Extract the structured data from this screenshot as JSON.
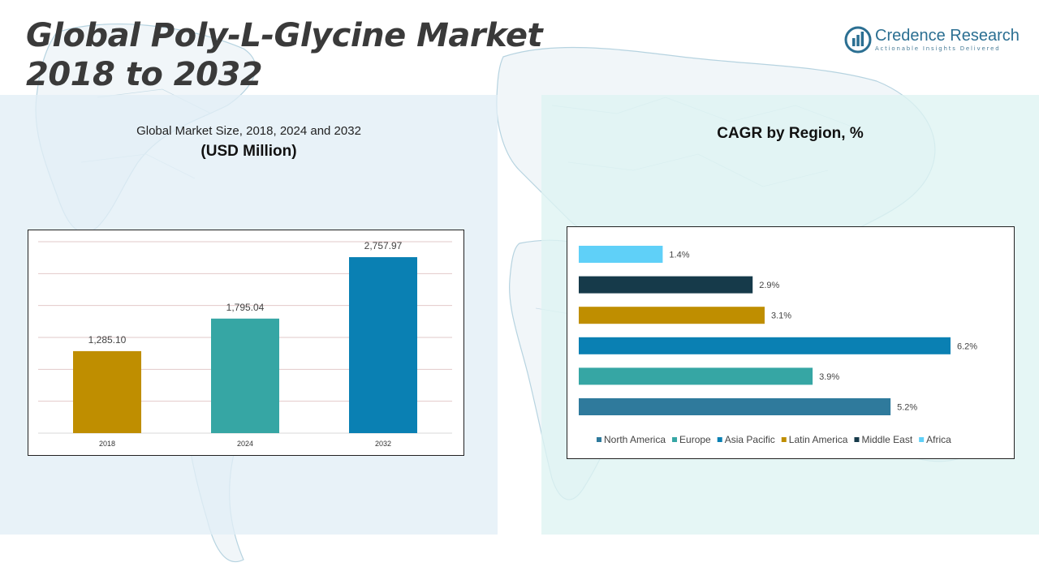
{
  "title": {
    "line1": "Global Poly-L-Glycine Market",
    "line2": "2018 to 2032"
  },
  "logo": {
    "name": "Credence Research",
    "tagline": "Actionable Insights Delivered"
  },
  "left_panel": {
    "subtitle": "Global Market Size, 2018, 2024 and 2032",
    "unit": "(USD Million)"
  },
  "right_panel": {
    "title": "CAGR by Region, %"
  },
  "colors": {
    "gold": "#bf8e00",
    "teal": "#36a6a4",
    "blue": "#0a80b3",
    "steel": "#2f7a9c",
    "navy": "#163a4a",
    "sky": "#5fd0f8"
  },
  "chart_data": [
    {
      "type": "bar",
      "categories": [
        "2018",
        "2024",
        "2032"
      ],
      "values": [
        1285.1,
        1795.04,
        2757.97
      ],
      "value_labels": [
        "1,285.10",
        "1,795.04",
        "2,757.97"
      ],
      "bar_colors": [
        "#bf8e00",
        "#36a6a4",
        "#0a80b3"
      ],
      "ylim": [
        0,
        3000
      ],
      "grid": true,
      "title": "Global Market Size, 2018, 2024 and 2032",
      "ylabel": "(USD Million)"
    },
    {
      "type": "bar",
      "orientation": "horizontal",
      "categories": [
        "North America",
        "Europe",
        "Asia Pacific",
        "Latin America",
        "Middle East",
        "Africa"
      ],
      "values": [
        5.2,
        3.9,
        6.2,
        3.1,
        2.9,
        1.4
      ],
      "value_labels": [
        "5.2%",
        "3.9%",
        "6.2%",
        "3.1%",
        "2.9%",
        "1.4%"
      ],
      "bar_colors": [
        "#2f7a9c",
        "#36a6a4",
        "#0a80b3",
        "#bf8e00",
        "#163a4a",
        "#5fd0f8"
      ],
      "xlim": [
        0,
        6.2
      ],
      "legend": "bottom",
      "grid": false,
      "title": "CAGR by Region, %"
    }
  ]
}
